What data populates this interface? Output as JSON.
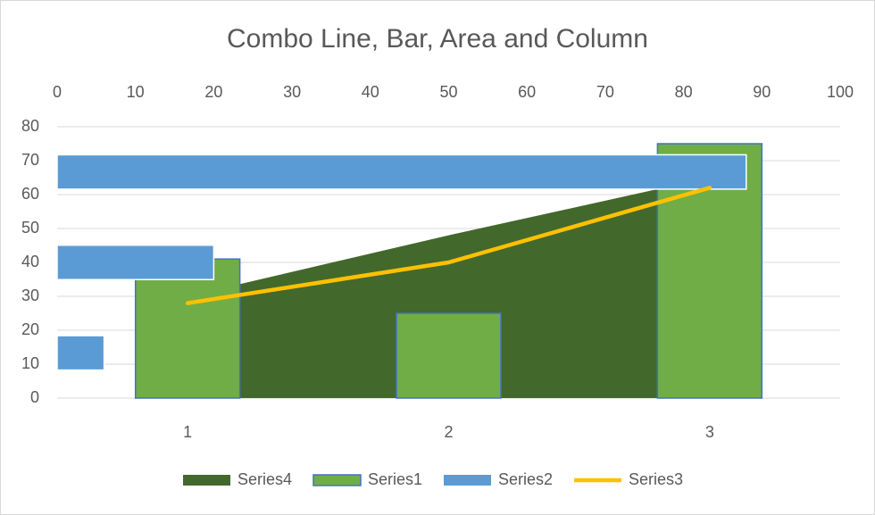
{
  "chart_data": {
    "type": "combo",
    "title": "Combo Line, Bar, Area and Column",
    "categories": [
      "1",
      "2",
      "3"
    ],
    "series": [
      {
        "name": "Series4",
        "type": "area",
        "color": "#43682b",
        "values": [
          30,
          48,
          65
        ]
      },
      {
        "name": "Series1",
        "type": "column",
        "color": "#70ad47",
        "values": [
          41,
          25,
          75
        ]
      },
      {
        "name": "Series2",
        "type": "bar",
        "axis": "x2",
        "color": "#5b9bd5",
        "values": [
          6,
          20,
          88
        ]
      },
      {
        "name": "Series3",
        "type": "line",
        "color": "#ffc000",
        "values": [
          28,
          40,
          62
        ]
      }
    ],
    "ylim": [
      0,
      80
    ],
    "yticks": [
      0,
      10,
      20,
      30,
      40,
      50,
      60,
      70,
      80
    ],
    "x2lim": [
      0,
      100
    ],
    "x2ticks": [
      0,
      10,
      20,
      30,
      40,
      50,
      60,
      70,
      80,
      90,
      100
    ],
    "grid": true,
    "legend": "bottom"
  }
}
